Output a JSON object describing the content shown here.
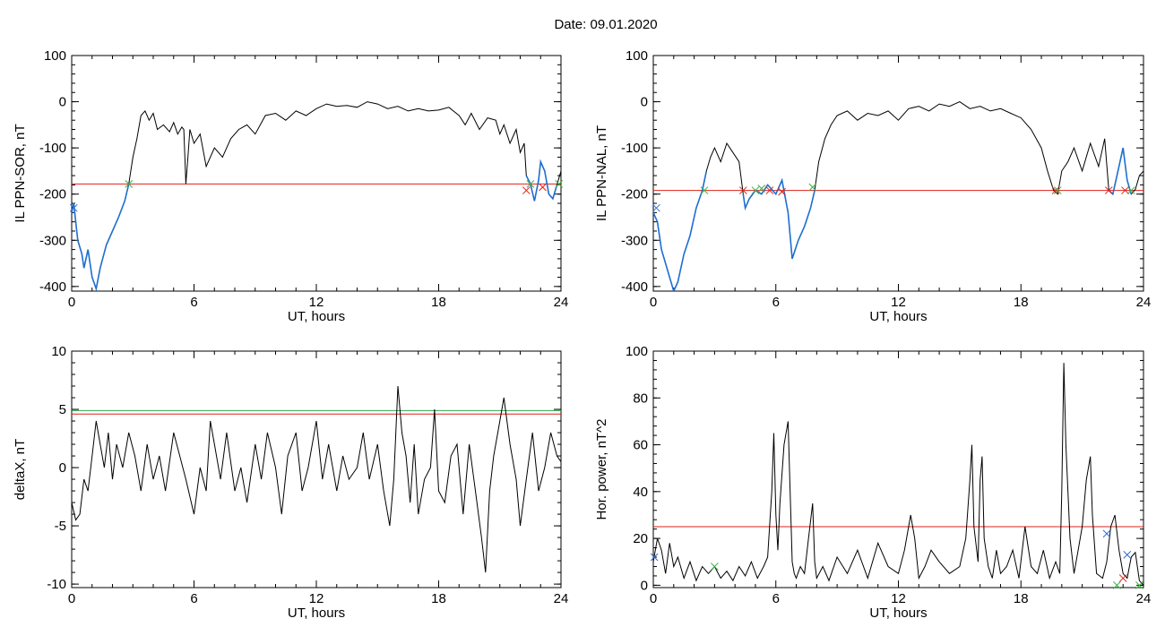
{
  "figure": {
    "date_label": "Date:  09.01.2020"
  },
  "colors": {
    "trace": "#000000",
    "highlight": "#1f6fd1",
    "threshold_red": "#e0201a",
    "threshold_green": "#2fa84f",
    "marker_red": "#e0201a",
    "marker_green": "#3cb043",
    "marker_blue": "#2f6fd0"
  },
  "chart_data": [
    {
      "type": "line",
      "ylabel": "IL PPN-SOR, nT",
      "xlabel": "UT, hours",
      "xlim": [
        0,
        24
      ],
      "ylim": [
        -410,
        100
      ],
      "xticks": [
        "0",
        "6",
        "12",
        "18",
        "24"
      ],
      "yticks": [
        "100",
        "0",
        "-100",
        "-200",
        "-300",
        "-400"
      ],
      "ytick_values": [
        100,
        0,
        -100,
        -200,
        -300,
        -400
      ],
      "threshold": -178,
      "series": [
        {
          "style": "trace",
          "x": [
            0,
            0.1,
            0.2,
            0.3,
            0.5,
            0.6,
            0.8,
            1.0,
            1.2,
            1.4,
            1.7,
            2.0,
            2.3,
            2.6,
            2.8,
            3.0,
            3.2,
            3.4,
            3.6,
            3.8,
            4.0,
            4.2,
            4.5,
            4.8,
            5.0,
            5.2,
            5.4,
            5.5,
            5.55,
            5.6,
            5.7,
            5.8,
            6.0,
            6.3,
            6.6,
            7.0,
            7.4,
            7.8,
            8.2,
            8.6,
            9.0,
            9.5,
            10.0,
            10.5,
            11.0,
            11.5,
            12.0,
            12.5,
            13.0,
            13.5,
            14.0,
            14.5,
            15.0,
            15.5,
            16.0,
            16.5,
            17.0,
            17.5,
            18.0,
            18.5,
            19.0,
            19.3,
            19.6,
            20.0,
            20.4,
            20.8,
            21.0,
            21.2,
            21.5,
            21.8,
            22.0,
            22.2,
            22.3,
            22.5,
            22.7,
            22.9,
            23.0,
            23.2,
            23.4,
            23.6,
            23.8,
            24.0
          ],
          "y": [
            -240,
            -220,
            -260,
            -300,
            -330,
            -360,
            -320,
            -380,
            -405,
            -360,
            -310,
            -280,
            -250,
            -215,
            -178,
            -120,
            -80,
            -30,
            -20,
            -40,
            -25,
            -60,
            -50,
            -65,
            -45,
            -70,
            -55,
            -60,
            -120,
            -178,
            -120,
            -60,
            -90,
            -70,
            -140,
            -100,
            -120,
            -80,
            -60,
            -50,
            -70,
            -30,
            -25,
            -40,
            -20,
            -30,
            -15,
            -5,
            -10,
            -8,
            -12,
            0,
            -5,
            -15,
            -10,
            -20,
            -15,
            -20,
            -18,
            -12,
            -30,
            -50,
            -25,
            -60,
            -35,
            -40,
            -70,
            -50,
            -90,
            -60,
            -110,
            -90,
            -160,
            -178,
            -215,
            -170,
            -130,
            -150,
            -200,
            -210,
            -180,
            -150
          ],
          "highlight_ranges": [
            [
              0,
              2.8
            ],
            [
              22.3,
              23.9
            ]
          ]
        }
      ],
      "markers": [
        {
          "x": 2.8,
          "y": -178,
          "color": "marker_green"
        },
        {
          "x": 22.3,
          "y": -192,
          "color": "marker_red"
        },
        {
          "x": 22.5,
          "y": -178,
          "color": "marker_green"
        },
        {
          "x": 23.1,
          "y": -185,
          "color": "marker_red"
        },
        {
          "x": 23.9,
          "y": -178,
          "color": "marker_green"
        },
        {
          "x": 0.1,
          "y": -230,
          "color": "marker_blue"
        }
      ]
    },
    {
      "type": "line",
      "ylabel": "IL PPN-NAL, nT",
      "xlabel": "UT, hours",
      "xlim": [
        0,
        24
      ],
      "ylim": [
        -410,
        100
      ],
      "xticks": [
        "0",
        "6",
        "12",
        "18",
        "24"
      ],
      "yticks": [
        "100",
        "0",
        "-100",
        "-200",
        "-300",
        "-400"
      ],
      "ytick_values": [
        100,
        0,
        -100,
        -200,
        -300,
        -400
      ],
      "threshold": -192,
      "series": [
        {
          "style": "trace",
          "x": [
            0,
            0.2,
            0.4,
            0.6,
            0.8,
            1.0,
            1.2,
            1.5,
            1.8,
            2.1,
            2.4,
            2.6,
            2.8,
            3.0,
            3.3,
            3.6,
            3.9,
            4.2,
            4.4,
            4.5,
            4.7,
            5.0,
            5.3,
            5.6,
            6.0,
            6.3,
            6.6,
            6.8,
            7.1,
            7.4,
            7.7,
            7.9,
            8.1,
            8.4,
            8.7,
            9.0,
            9.5,
            10.0,
            10.5,
            11.0,
            11.5,
            12.0,
            12.5,
            13.0,
            13.5,
            14.0,
            14.5,
            15.0,
            15.5,
            16.0,
            16.5,
            17.0,
            17.5,
            18.0,
            18.5,
            19.0,
            19.3,
            19.6,
            19.8,
            20.0,
            20.3,
            20.6,
            21.0,
            21.4,
            21.8,
            22.1,
            22.3,
            22.5,
            22.7,
            23.0,
            23.2,
            23.4,
            23.6,
            23.8,
            24.0
          ],
          "y": [
            -240,
            -260,
            -320,
            -350,
            -380,
            -410,
            -390,
            -330,
            -290,
            -230,
            -192,
            -150,
            -120,
            -100,
            -130,
            -90,
            -110,
            -130,
            -200,
            -230,
            -210,
            -192,
            -200,
            -180,
            -200,
            -170,
            -240,
            -340,
            -300,
            -270,
            -230,
            -192,
            -130,
            -80,
            -50,
            -30,
            -20,
            -40,
            -25,
            -30,
            -20,
            -40,
            -15,
            -10,
            -20,
            -5,
            -10,
            0,
            -15,
            -10,
            -20,
            -15,
            -25,
            -35,
            -60,
            -100,
            -150,
            -192,
            -200,
            -150,
            -130,
            -100,
            -150,
            -90,
            -140,
            -80,
            -192,
            -200,
            -160,
            -100,
            -170,
            -200,
            -190,
            -160,
            -150
          ],
          "highlight_ranges": [
            [
              0,
              2.6
            ],
            [
              4.3,
              8.0
            ],
            [
              22.3,
              23.4
            ]
          ]
        }
      ],
      "markers": [
        {
          "x": 2.5,
          "y": -192,
          "color": "marker_green"
        },
        {
          "x": 4.4,
          "y": -192,
          "color": "marker_red"
        },
        {
          "x": 5.0,
          "y": -192,
          "color": "marker_green"
        },
        {
          "x": 5.3,
          "y": -188,
          "color": "marker_green"
        },
        {
          "x": 5.7,
          "y": -192,
          "color": "marker_red"
        },
        {
          "x": 6.3,
          "y": -195,
          "color": "marker_red"
        },
        {
          "x": 7.8,
          "y": -185,
          "color": "marker_green"
        },
        {
          "x": 19.7,
          "y": -192,
          "color": "marker_red"
        },
        {
          "x": 19.8,
          "y": -192,
          "color": "marker_green"
        },
        {
          "x": 22.3,
          "y": -192,
          "color": "marker_red"
        },
        {
          "x": 23.1,
          "y": -192,
          "color": "marker_red"
        },
        {
          "x": 23.4,
          "y": -192,
          "color": "marker_green"
        },
        {
          "x": 0.15,
          "y": -230,
          "color": "marker_blue"
        }
      ]
    },
    {
      "type": "line",
      "ylabel": "deltaX, nT",
      "xlabel": "UT, hours",
      "xlim": [
        0,
        24
      ],
      "ylim": [
        -10.3,
        10
      ],
      "xticks": [
        "0",
        "6",
        "12",
        "18",
        "24"
      ],
      "yticks": [
        "10",
        "5",
        "0",
        "-5",
        "-10"
      ],
      "ytick_values": [
        10,
        5,
        0,
        -5,
        -10
      ],
      "thresholds": [
        {
          "value": 4.9,
          "color": "threshold_green"
        },
        {
          "value": 4.6,
          "color": "threshold_red"
        }
      ],
      "series": [
        {
          "style": "trace",
          "x": [
            0,
            0.2,
            0.4,
            0.6,
            0.8,
            1.0,
            1.2,
            1.4,
            1.6,
            1.8,
            2.0,
            2.2,
            2.5,
            2.8,
            3.1,
            3.4,
            3.7,
            4.0,
            4.3,
            4.6,
            5.0,
            5.3,
            5.6,
            6.0,
            6.3,
            6.6,
            6.8,
            7.0,
            7.3,
            7.6,
            8.0,
            8.3,
            8.6,
            9.0,
            9.3,
            9.6,
            10.0,
            10.3,
            10.6,
            11.0,
            11.3,
            11.6,
            12.0,
            12.3,
            12.6,
            13.0,
            13.3,
            13.6,
            14.0,
            14.3,
            14.6,
            15.0,
            15.3,
            15.6,
            15.8,
            16.0,
            16.2,
            16.4,
            16.6,
            16.8,
            17.0,
            17.3,
            17.6,
            17.8,
            18.0,
            18.3,
            18.6,
            18.9,
            19.2,
            19.5,
            19.8,
            20.1,
            20.3,
            20.5,
            20.7,
            20.9,
            21.2,
            21.5,
            21.8,
            22.0,
            22.3,
            22.6,
            22.9,
            23.2,
            23.5,
            23.8,
            24.0
          ],
          "y": [
            -3,
            -4.5,
            -4,
            -1,
            -2,
            1,
            4,
            2,
            0,
            3,
            -1,
            2,
            0,
            3,
            1,
            -2,
            2,
            -1,
            1,
            -2,
            3,
            1,
            -1,
            -4,
            0,
            -2,
            4,
            2,
            -1,
            3,
            -2,
            0,
            -3,
            2,
            -1,
            3,
            0,
            -4,
            1,
            3,
            -2,
            0,
            4,
            -1,
            2,
            -2,
            1,
            -1,
            0,
            3,
            -1,
            2,
            -2,
            -5,
            -1,
            7,
            3,
            1,
            -3,
            2,
            -4,
            -1,
            0,
            5,
            -2,
            -3,
            1,
            2,
            -4,
            2,
            -2,
            -6,
            -9,
            -2,
            1,
            3,
            6,
            2,
            -1,
            -5,
            -1,
            3,
            -2,
            0,
            3,
            1,
            0.5
          ]
        }
      ]
    },
    {
      "type": "line",
      "ylabel": "Hor. power, nT^2",
      "xlabel": "UT, hours",
      "xlim": [
        0,
        24
      ],
      "ylim": [
        -1,
        100
      ],
      "xticks": [
        "0",
        "6",
        "12",
        "18",
        "24"
      ],
      "yticks": [
        "100",
        "80",
        "60",
        "40",
        "20",
        "0"
      ],
      "ytick_values": [
        100,
        80,
        60,
        40,
        20,
        0
      ],
      "threshold": 25,
      "series": [
        {
          "style": "trace",
          "x": [
            0,
            0.2,
            0.4,
            0.6,
            0.8,
            1.0,
            1.2,
            1.5,
            1.8,
            2.1,
            2.4,
            2.7,
            3.0,
            3.3,
            3.6,
            3.9,
            4.2,
            4.5,
            4.8,
            5.1,
            5.4,
            5.6,
            5.8,
            5.9,
            6.0,
            6.1,
            6.2,
            6.4,
            6.6,
            6.7,
            6.8,
            6.9,
            7.0,
            7.2,
            7.4,
            7.6,
            7.8,
            7.9,
            8.0,
            8.3,
            8.6,
            9.0,
            9.5,
            10.0,
            10.5,
            11.0,
            11.5,
            12.0,
            12.3,
            12.6,
            12.8,
            13.0,
            13.3,
            13.6,
            14.0,
            14.5,
            15.0,
            15.3,
            15.5,
            15.6,
            15.7,
            15.9,
            16.0,
            16.1,
            16.2,
            16.4,
            16.6,
            16.8,
            17.0,
            17.3,
            17.6,
            17.9,
            18.2,
            18.5,
            18.8,
            19.1,
            19.4,
            19.7,
            19.9,
            20.0,
            20.1,
            20.2,
            20.4,
            20.6,
            20.8,
            21.0,
            21.2,
            21.4,
            21.5,
            21.7,
            22.0,
            22.2,
            22.4,
            22.6,
            22.8,
            23.0,
            23.2,
            23.4,
            23.6,
            23.8,
            24.0
          ],
          "y": [
            10,
            20,
            15,
            5,
            18,
            8,
            12,
            3,
            10,
            2,
            8,
            5,
            8,
            3,
            6,
            2,
            8,
            4,
            10,
            3,
            8,
            12,
            40,
            65,
            30,
            15,
            35,
            60,
            70,
            40,
            10,
            5,
            3,
            8,
            5,
            20,
            35,
            10,
            3,
            8,
            2,
            12,
            5,
            15,
            3,
            18,
            8,
            5,
            15,
            30,
            20,
            3,
            8,
            15,
            10,
            5,
            8,
            20,
            45,
            60,
            25,
            10,
            45,
            55,
            20,
            8,
            3,
            15,
            5,
            8,
            15,
            3,
            25,
            8,
            5,
            15,
            3,
            10,
            5,
            40,
            95,
            60,
            20,
            5,
            15,
            25,
            45,
            55,
            30,
            5,
            3,
            10,
            25,
            30,
            15,
            5,
            3,
            12,
            14,
            2,
            0
          ]
        }
      ],
      "markers": [
        {
          "x": 0.05,
          "y": 12,
          "color": "marker_blue"
        },
        {
          "x": 3.0,
          "y": 8,
          "color": "marker_green"
        },
        {
          "x": 22.2,
          "y": 22,
          "color": "marker_blue"
        },
        {
          "x": 22.7,
          "y": 0,
          "color": "marker_green"
        },
        {
          "x": 23.0,
          "y": 3,
          "color": "marker_red"
        },
        {
          "x": 23.2,
          "y": 13,
          "color": "marker_blue"
        },
        {
          "x": 23.8,
          "y": 0,
          "color": "marker_green"
        }
      ]
    }
  ]
}
